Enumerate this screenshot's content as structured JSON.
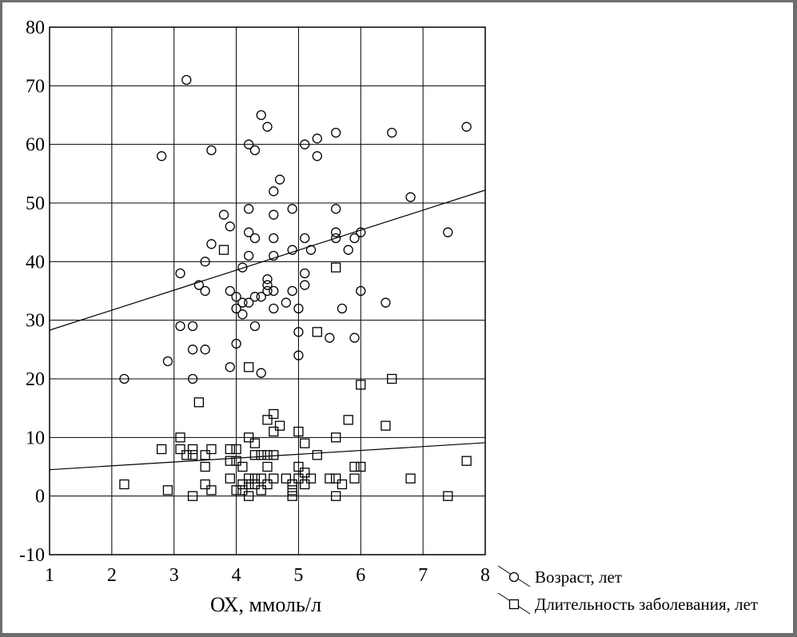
{
  "chart_data": {
    "type": "scatter",
    "xlabel": "ОХ, ммоль/л",
    "ylabel": "",
    "xlim": [
      1,
      8
    ],
    "ylim": [
      -10,
      80
    ],
    "xticks": [
      1,
      2,
      3,
      4,
      5,
      6,
      7,
      8
    ],
    "yticks": [
      -10,
      0,
      10,
      20,
      30,
      40,
      50,
      60,
      70,
      80
    ],
    "grid": true,
    "legend_position": "bottom-right, outside plot",
    "series": [
      {
        "name": "Возраст, лет",
        "marker": "circle",
        "points": [
          [
            2.2,
            20
          ],
          [
            2.8,
            58
          ],
          [
            2.9,
            23
          ],
          [
            3.1,
            38
          ],
          [
            3.1,
            29
          ],
          [
            3.2,
            71
          ],
          [
            3.3,
            29
          ],
          [
            3.3,
            25
          ],
          [
            3.3,
            20
          ],
          [
            3.4,
            36
          ],
          [
            3.5,
            40
          ],
          [
            3.5,
            35
          ],
          [
            3.5,
            25
          ],
          [
            3.6,
            59
          ],
          [
            3.6,
            43
          ],
          [
            3.8,
            48
          ],
          [
            3.9,
            46
          ],
          [
            3.9,
            35
          ],
          [
            3.9,
            22
          ],
          [
            4.0,
            34
          ],
          [
            4.0,
            32
          ],
          [
            4.0,
            26
          ],
          [
            4.1,
            39
          ],
          [
            4.1,
            33
          ],
          [
            4.1,
            31
          ],
          [
            4.2,
            60
          ],
          [
            4.2,
            49
          ],
          [
            4.2,
            45
          ],
          [
            4.2,
            41
          ],
          [
            4.2,
            33
          ],
          [
            4.3,
            59
          ],
          [
            4.3,
            44
          ],
          [
            4.3,
            34
          ],
          [
            4.3,
            29
          ],
          [
            4.4,
            65
          ],
          [
            4.4,
            34
          ],
          [
            4.4,
            21
          ],
          [
            4.5,
            63
          ],
          [
            4.5,
            37
          ],
          [
            4.5,
            36
          ],
          [
            4.5,
            35
          ],
          [
            4.6,
            52
          ],
          [
            4.6,
            48
          ],
          [
            4.6,
            44
          ],
          [
            4.6,
            41
          ],
          [
            4.6,
            35
          ],
          [
            4.6,
            32
          ],
          [
            4.7,
            54
          ],
          [
            4.8,
            33
          ],
          [
            4.9,
            49
          ],
          [
            4.9,
            42
          ],
          [
            4.9,
            35
          ],
          [
            5.0,
            32
          ],
          [
            5.0,
            28
          ],
          [
            5.0,
            24
          ],
          [
            5.1,
            60
          ],
          [
            5.1,
            44
          ],
          [
            5.1,
            38
          ],
          [
            5.1,
            36
          ],
          [
            5.2,
            42
          ],
          [
            5.3,
            61
          ],
          [
            5.3,
            58
          ],
          [
            5.5,
            27
          ],
          [
            5.6,
            62
          ],
          [
            5.6,
            49
          ],
          [
            5.6,
            45
          ],
          [
            5.6,
            44
          ],
          [
            5.7,
            32
          ],
          [
            5.8,
            42
          ],
          [
            5.9,
            44
          ],
          [
            5.9,
            27
          ],
          [
            6.0,
            45
          ],
          [
            6.0,
            35
          ],
          [
            6.4,
            33
          ],
          [
            6.5,
            62
          ],
          [
            6.8,
            51
          ],
          [
            7.4,
            45
          ],
          [
            7.7,
            63
          ]
        ],
        "trend": [
          [
            1,
            28.3
          ],
          [
            8,
            52.2
          ]
        ]
      },
      {
        "name": "Длительность заболевания, лет",
        "marker": "square",
        "points": [
          [
            2.2,
            2
          ],
          [
            2.8,
            8
          ],
          [
            2.9,
            1
          ],
          [
            3.1,
            10
          ],
          [
            3.1,
            8
          ],
          [
            3.2,
            7
          ],
          [
            3.3,
            8
          ],
          [
            3.3,
            7
          ],
          [
            3.3,
            0
          ],
          [
            3.4,
            16
          ],
          [
            3.5,
            7
          ],
          [
            3.5,
            5
          ],
          [
            3.5,
            2
          ],
          [
            3.6,
            8
          ],
          [
            3.6,
            1
          ],
          [
            3.8,
            42
          ],
          [
            3.9,
            8
          ],
          [
            3.9,
            6
          ],
          [
            3.9,
            3
          ],
          [
            4.0,
            8
          ],
          [
            4.0,
            6
          ],
          [
            4.0,
            1
          ],
          [
            4.1,
            5
          ],
          [
            4.1,
            2
          ],
          [
            4.1,
            1
          ],
          [
            4.2,
            22
          ],
          [
            4.2,
            10
          ],
          [
            4.2,
            3
          ],
          [
            4.2,
            2
          ],
          [
            4.2,
            0
          ],
          [
            4.3,
            9
          ],
          [
            4.3,
            7
          ],
          [
            4.3,
            3
          ],
          [
            4.3,
            2
          ],
          [
            4.4,
            7
          ],
          [
            4.4,
            3
          ],
          [
            4.4,
            1
          ],
          [
            4.5,
            13
          ],
          [
            4.5,
            7
          ],
          [
            4.5,
            5
          ],
          [
            4.5,
            2
          ],
          [
            4.6,
            14
          ],
          [
            4.6,
            11
          ],
          [
            4.6,
            7
          ],
          [
            4.6,
            3
          ],
          [
            4.7,
            12
          ],
          [
            4.8,
            3
          ],
          [
            4.9,
            2
          ],
          [
            4.9,
            1
          ],
          [
            4.9,
            0
          ],
          [
            5.0,
            11
          ],
          [
            5.0,
            5
          ],
          [
            5.0,
            3
          ],
          [
            5.1,
            9
          ],
          [
            5.1,
            4
          ],
          [
            5.1,
            2
          ],
          [
            5.2,
            3
          ],
          [
            5.3,
            28
          ],
          [
            5.3,
            7
          ],
          [
            5.5,
            3
          ],
          [
            5.6,
            39
          ],
          [
            5.6,
            10
          ],
          [
            5.6,
            3
          ],
          [
            5.6,
            0
          ],
          [
            5.7,
            2
          ],
          [
            5.8,
            13
          ],
          [
            5.9,
            5
          ],
          [
            5.9,
            3
          ],
          [
            6.0,
            19
          ],
          [
            6.0,
            5
          ],
          [
            6.4,
            12
          ],
          [
            6.5,
            20
          ],
          [
            6.8,
            3
          ],
          [
            7.4,
            0
          ],
          [
            7.7,
            6
          ]
        ],
        "trend": [
          [
            1,
            4.5
          ],
          [
            8,
            9.1
          ]
        ]
      }
    ]
  }
}
